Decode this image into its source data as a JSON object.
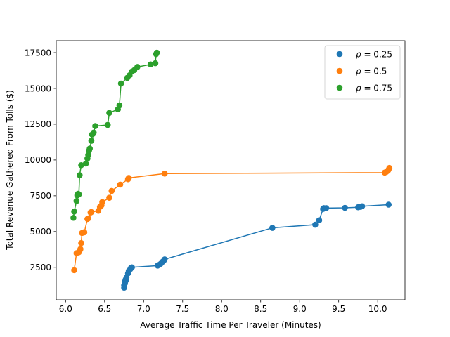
{
  "chart_data": {
    "type": "scatter",
    "title": "",
    "xlabel": "Average Traffic Time Per Traveler (Minutes)",
    "ylabel": "Total Revenue Gathered From Tolls ($)",
    "xlim": [
      5.88,
      10.35
    ],
    "ylim": [
      233,
      18335
    ],
    "xticks": [
      6.0,
      6.5,
      7.0,
      7.5,
      8.0,
      8.5,
      9.0,
      9.5,
      10.0
    ],
    "xtick_labels": [
      "6.0",
      "6.5",
      "7.0",
      "7.5",
      "8.0",
      "8.5",
      "9.0",
      "9.5",
      "10.0"
    ],
    "yticks": [
      2500,
      5000,
      7500,
      10000,
      12500,
      15000,
      17500
    ],
    "ytick_labels": [
      "2500",
      "5000",
      "7500",
      "10000",
      "12500",
      "15000",
      "17500"
    ],
    "legend_position": "top-right",
    "series": [
      {
        "name": "ρ = 0.25",
        "legend_prefix": "ρ",
        "legend_value": "= 0.25",
        "color": "#1f77b4",
        "x": [
          6.75,
          6.75,
          6.76,
          6.76,
          6.77,
          6.77,
          6.78,
          6.8,
          6.81,
          6.83,
          6.84,
          6.85,
          7.18,
          7.2,
          7.22,
          7.24,
          7.26,
          7.27,
          8.65,
          9.2,
          9.25,
          9.3,
          9.31,
          9.34,
          9.58,
          9.75,
          9.78,
          9.8,
          10.14
        ],
        "y": [
          1080,
          1250,
          1380,
          1500,
          1560,
          1650,
          1780,
          2080,
          2250,
          2380,
          2480,
          2500,
          2620,
          2680,
          2760,
          2880,
          2980,
          3060,
          5260,
          5480,
          5790,
          6580,
          6640,
          6640,
          6660,
          6700,
          6730,
          6770,
          6880
        ]
      },
      {
        "name": "ρ = 0.5",
        "legend_prefix": "ρ",
        "legend_value": "= 0.5",
        "color": "#ff7f0e",
        "x": [
          6.11,
          6.14,
          6.17,
          6.18,
          6.19,
          6.2,
          6.21,
          6.23,
          6.24,
          6.28,
          6.29,
          6.32,
          6.33,
          6.42,
          6.44,
          6.46,
          6.47,
          6.56,
          6.59,
          6.7,
          6.8,
          6.81,
          7.27,
          10.09,
          10.11,
          10.13,
          10.14,
          10.15
        ],
        "y": [
          2300,
          3490,
          3560,
          3680,
          3780,
          4200,
          4900,
          4940,
          4950,
          5880,
          5920,
          6330,
          6360,
          6450,
          6720,
          6830,
          7060,
          7360,
          7840,
          8280,
          8660,
          8750,
          9050,
          9120,
          9170,
          9250,
          9330,
          9450
        ]
      },
      {
        "name": "ρ = 0.75",
        "legend_prefix": "ρ",
        "legend_value": "= 0.75",
        "color": "#2ca02c",
        "x": [
          6.1,
          6.11,
          6.14,
          6.15,
          6.16,
          6.17,
          6.18,
          6.2,
          6.26,
          6.28,
          6.29,
          6.3,
          6.31,
          6.33,
          6.34,
          6.36,
          6.38,
          6.54,
          6.56,
          6.67,
          6.69,
          6.71,
          6.79,
          6.82,
          6.85,
          6.88,
          6.92,
          7.09,
          7.15,
          7.16,
          7.17
        ],
        "y": [
          5960,
          6400,
          7130,
          7520,
          7640,
          7600,
          8940,
          9640,
          9750,
          10100,
          10350,
          10650,
          10800,
          11340,
          11780,
          11920,
          12370,
          12450,
          13290,
          13540,
          13820,
          15340,
          15740,
          15920,
          16180,
          16280,
          16500,
          16680,
          16760,
          17400,
          17500
        ]
      }
    ]
  }
}
